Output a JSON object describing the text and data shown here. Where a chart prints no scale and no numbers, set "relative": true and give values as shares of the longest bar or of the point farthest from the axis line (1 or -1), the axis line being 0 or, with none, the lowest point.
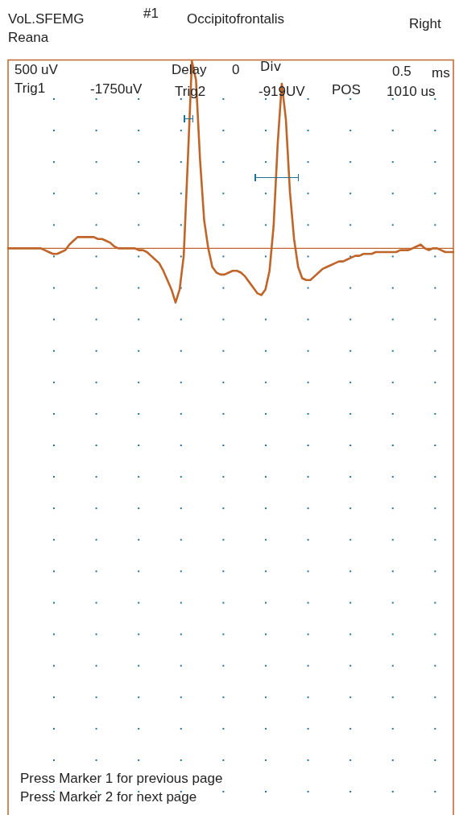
{
  "chart_data": {
    "type": "line",
    "relative": true,
    "legend": false,
    "ref_lines": [
      {
        "axis": "y",
        "value": 0,
        "color": "#c0652a"
      }
    ],
    "marker": "none",
    "line_style": "solid",
    "annotations": [
      "VoL.SFEMG",
      "Reana",
      "#1",
      "Occipitofrontalis",
      "Right",
      "500 uV",
      "Delay",
      "0",
      "Div",
      "0.5",
      "ms",
      "Trig1",
      "-1750uV",
      "Trig2",
      "-919UV",
      "POS",
      "1010 us",
      "Press Marker 1 for previous page",
      "Press Marker 2 for next page"
    ],
    "categories": [
      null,
      null,
      null,
      null,
      null,
      null,
      null,
      null,
      null,
      null,
      null,
      null,
      null,
      null,
      null,
      null,
      null,
      null,
      null,
      null,
      null,
      null,
      null,
      null,
      null,
      null,
      null,
      null,
      null,
      null,
      null,
      null,
      null,
      null,
      null,
      null,
      null,
      null,
      null,
      null,
      null,
      null,
      null,
      null,
      null,
      null,
      null,
      null,
      null,
      null,
      null,
      null,
      null,
      null,
      null,
      null,
      null,
      null,
      null,
      null,
      null,
      null,
      null,
      null,
      null,
      null,
      null,
      null,
      null,
      null,
      null,
      null,
      null,
      null,
      null,
      null,
      null,
      null,
      null,
      null,
      null,
      null,
      null,
      null,
      null,
      null,
      null,
      null,
      null,
      null,
      null,
      null,
      null,
      null,
      null,
      null,
      null,
      null,
      null,
      null,
      null,
      null,
      null,
      null,
      null,
      null,
      null,
      null,
      null,
      null
    ],
    "series": [
      {
        "color": "#c0652a",
        "values": [
          0,
          0,
          0,
          0,
          0,
          0,
          0,
          0,
          0,
          -0.01,
          -0.02,
          -0.03,
          -0.03,
          -0.02,
          -0.01,
          0.02,
          0.04,
          0.06,
          0.06,
          0.06,
          0.06,
          0.06,
          0.05,
          0.05,
          0.04,
          0.03,
          0.01,
          0,
          0,
          0,
          0,
          0,
          -0.01,
          -0.01,
          -0.02,
          -0.04,
          -0.06,
          -0.08,
          -0.12,
          -0.17,
          -0.22,
          -0.29,
          -0.22,
          -0.04,
          0.47,
          1,
          0.9,
          0.47,
          0.15,
          0,
          -0.1,
          -0.13,
          -0.14,
          -0.14,
          -0.13,
          -0.12,
          -0.12,
          -0.13,
          -0.15,
          -0.18,
          -0.21,
          -0.24,
          -0.25,
          -0.22,
          -0.12,
          0.12,
          0.56,
          0.88,
          0.69,
          0.3,
          0.05,
          -0.1,
          -0.16,
          -0.17,
          -0.17,
          -0.15,
          -0.13,
          -0.11,
          -0.1,
          -0.09,
          -0.08,
          -0.07,
          -0.07,
          -0.06,
          -0.05,
          -0.04,
          -0.04,
          -0.03,
          -0.03,
          -0.03,
          -0.02,
          -0.02,
          -0.02,
          -0.02,
          -0.02,
          -0.02,
          -0.01,
          -0.01,
          -0.01,
          0,
          0.01,
          0.02,
          0,
          -0.01,
          0,
          0,
          -0.01,
          -0.02,
          -0.02,
          -0.02
        ]
      }
    ]
  }
}
